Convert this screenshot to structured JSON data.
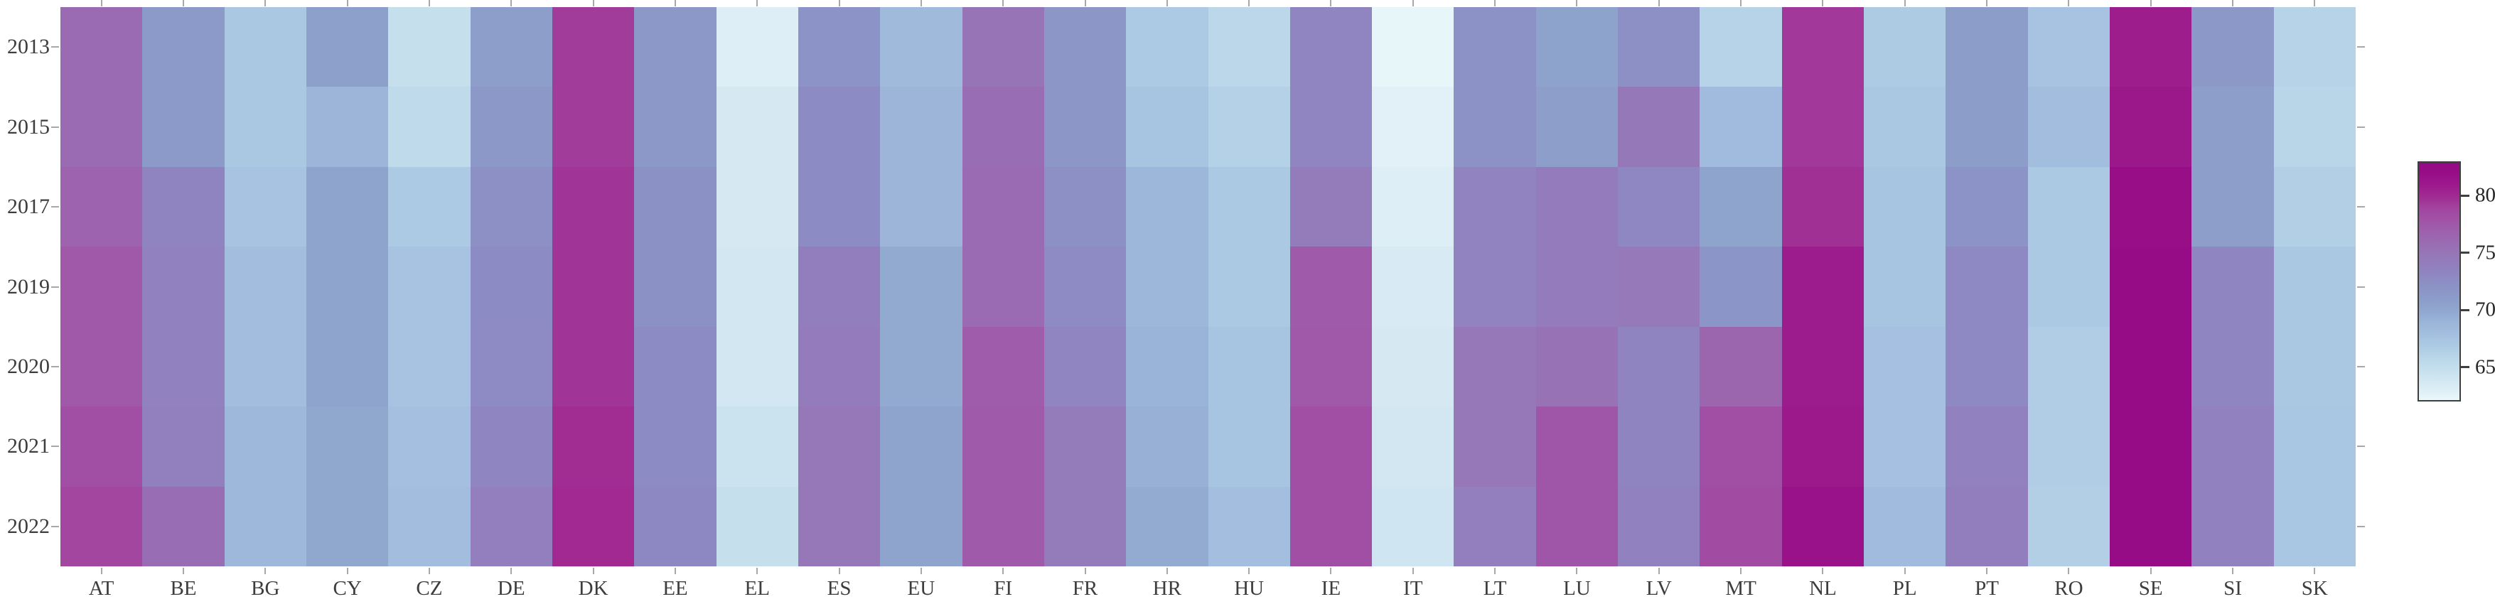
{
  "chart_data": {
    "type": "heatmap",
    "title": "",
    "xlabel": "",
    "ylabel": "",
    "x_categories": [
      "AT",
      "BE",
      "BG",
      "CY",
      "CZ",
      "DE",
      "DK",
      "EE",
      "EL",
      "ES",
      "EU",
      "FI",
      "FR",
      "HR",
      "HU",
      "IE",
      "IT",
      "LT",
      "LU",
      "LV",
      "MT",
      "NL",
      "PL",
      "PT",
      "RO",
      "SE",
      "SI",
      "SK"
    ],
    "y_categories": [
      "2013",
      "2015",
      "2017",
      "2019",
      "2020",
      "2021",
      "2022"
    ],
    "values": [
      [
        76.0,
        71.2,
        67.0,
        70.7,
        64.8,
        70.8,
        79.3,
        71.4,
        62.9,
        72.0,
        68.3,
        75.2,
        71.7,
        66.8,
        65.6,
        73.3,
        62.2,
        72.1,
        70.3,
        72.3,
        66.0,
        79.4,
        66.7,
        70.9,
        67.5,
        80.8,
        71.5,
        66.0
      ],
      [
        76.0,
        71.2,
        67.0,
        68.8,
        65.3,
        71.5,
        79.3,
        71.4,
        63.5,
        72.7,
        68.8,
        75.8,
        71.7,
        67.4,
        66.1,
        73.3,
        62.6,
        72.1,
        70.8,
        74.8,
        68.2,
        79.4,
        67.0,
        70.9,
        68.0,
        81.2,
        70.8,
        65.8
      ],
      [
        76.7,
        73.4,
        67.5,
        70.2,
        66.8,
        72.3,
        79.6,
        72.2,
        63.5,
        72.7,
        68.8,
        76.0,
        72.3,
        68.6,
        66.9,
        74.3,
        62.9,
        73.5,
        74.2,
        73.1,
        70.2,
        79.8,
        67.4,
        72.0,
        66.9,
        82.0,
        70.8,
        66.3
      ],
      [
        77.5,
        73.6,
        68.0,
        70.2,
        67.5,
        72.7,
        79.6,
        72.2,
        63.7,
        74.0,
        69.7,
        76.0,
        72.8,
        68.6,
        66.9,
        77.4,
        63.3,
        73.5,
        74.4,
        74.6,
        71.8,
        80.9,
        67.4,
        72.9,
        66.9,
        82.4,
        73.2,
        67.0
      ],
      [
        77.5,
        73.6,
        68.0,
        70.2,
        67.5,
        72.8,
        79.6,
        72.7,
        63.7,
        74.4,
        69.7,
        77.3,
        73.3,
        69.0,
        67.4,
        77.6,
        63.5,
        74.9,
        75.3,
        73.4,
        76.5,
        80.9,
        67.7,
        72.9,
        66.5,
        82.4,
        73.2,
        67.0
      ],
      [
        78.2,
        73.8,
        68.5,
        69.9,
        67.8,
        73.2,
        79.9,
        72.7,
        64.3,
        74.9,
        70.2,
        77.4,
        74.3,
        69.2,
        67.4,
        78.2,
        63.8,
        74.9,
        77.7,
        73.4,
        78.2,
        81.1,
        67.7,
        73.7,
        66.5,
        82.5,
        73.6,
        67.2
      ],
      [
        78.8,
        75.8,
        68.5,
        69.9,
        68.0,
        73.9,
        80.1,
        73.0,
        64.8,
        74.9,
        70.2,
        77.4,
        74.3,
        69.6,
        67.9,
        78.2,
        64.0,
        73.9,
        77.7,
        73.6,
        78.5,
        81.7,
        68.2,
        74.0,
        66.3,
        82.5,
        73.7,
        67.2
      ]
    ],
    "colorbar": {
      "tick_labels": [
        "80",
        "75",
        "70",
        "65"
      ],
      "ticks": [
        80,
        75,
        70,
        65
      ],
      "domain": [
        62,
        83
      ],
      "stops": [
        {
          "v": 62,
          "c": "#e9f8fa"
        },
        {
          "v": 63,
          "c": "#dcedf5"
        },
        {
          "v": 65,
          "c": "#c2ddec"
        },
        {
          "v": 67,
          "c": "#abc8e3"
        },
        {
          "v": 68,
          "c": "#a2bdde"
        },
        {
          "v": 69,
          "c": "#9ab3d8"
        },
        {
          "v": 70,
          "c": "#8fa6cd"
        },
        {
          "v": 71,
          "c": "#8c9cca"
        },
        {
          "v": 72,
          "c": "#8c93c6"
        },
        {
          "v": 73,
          "c": "#8e88c2"
        },
        {
          "v": 74,
          "c": "#937ebd"
        },
        {
          "v": 75,
          "c": "#9676b7"
        },
        {
          "v": 76,
          "c": "#9a6bb2"
        },
        {
          "v": 77,
          "c": "#9e60ac"
        },
        {
          "v": 78,
          "c": "#a152a6"
        },
        {
          "v": 79,
          "c": "#a2439f"
        },
        {
          "v": 80,
          "c": "#a12b92"
        },
        {
          "v": 81,
          "c": "#9c1a8c"
        },
        {
          "v": 82,
          "c": "#980e87"
        },
        {
          "v": 83,
          "c": "#940a84"
        }
      ]
    },
    "layout_hints": {
      "grid": false,
      "legend_position": "right-colorbar",
      "tick_color": "#a8a8a8",
      "label_color": "#3d3d3d",
      "background": "#ffffff"
    }
  }
}
